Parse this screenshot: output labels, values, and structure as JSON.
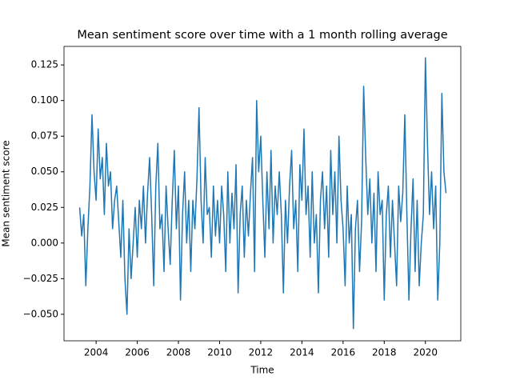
{
  "chart_data": {
    "type": "line",
    "title": "Mean sentiment score over time with a 1 month rolling average",
    "x_label": "Time",
    "y_label": "Mean sentiment score",
    "x": [
      2003.2,
      2003.3,
      2003.4,
      2003.5,
      2003.6,
      2003.7,
      2003.8,
      2003.9,
      2004.0,
      2004.1,
      2004.2,
      2004.3,
      2004.4,
      2004.5,
      2004.6,
      2004.7,
      2004.8,
      2004.9,
      2005.0,
      2005.1,
      2005.2,
      2005.3,
      2005.4,
      2005.5,
      2005.6,
      2005.7,
      2005.8,
      2005.9,
      2006.0,
      2006.1,
      2006.2,
      2006.3,
      2006.4,
      2006.5,
      2006.6,
      2006.7,
      2006.8,
      2006.9,
      2007.0,
      2007.1,
      2007.2,
      2007.3,
      2007.4,
      2007.5,
      2007.6,
      2007.7,
      2007.8,
      2007.9,
      2008.0,
      2008.1,
      2008.2,
      2008.3,
      2008.4,
      2008.5,
      2008.6,
      2008.7,
      2008.8,
      2008.9,
      2009.0,
      2009.1,
      2009.2,
      2009.3,
      2009.4,
      2009.5,
      2009.6,
      2009.7,
      2009.8,
      2009.9,
      2010.0,
      2010.1,
      2010.2,
      2010.3,
      2010.4,
      2010.5,
      2010.6,
      2010.7,
      2010.8,
      2010.9,
      2011.0,
      2011.1,
      2011.2,
      2011.3,
      2011.4,
      2011.5,
      2011.6,
      2011.7,
      2011.8,
      2011.9,
      2012.0,
      2012.1,
      2012.2,
      2012.3,
      2012.4,
      2012.5,
      2012.6,
      2012.7,
      2012.8,
      2012.9,
      2013.0,
      2013.1,
      2013.2,
      2013.3,
      2013.4,
      2013.5,
      2013.6,
      2013.7,
      2013.8,
      2013.9,
      2014.0,
      2014.1,
      2014.2,
      2014.3,
      2014.4,
      2014.5,
      2014.6,
      2014.7,
      2014.8,
      2014.9,
      2015.0,
      2015.1,
      2015.2,
      2015.3,
      2015.4,
      2015.5,
      2015.6,
      2015.7,
      2015.8,
      2015.9,
      2016.0,
      2016.1,
      2016.2,
      2016.3,
      2016.4,
      2016.5,
      2016.6,
      2016.7,
      2016.8,
      2016.9,
      2017.0,
      2017.1,
      2017.2,
      2017.3,
      2017.4,
      2017.5,
      2017.6,
      2017.7,
      2017.8,
      2017.9,
      2018.0,
      2018.1,
      2018.2,
      2018.3,
      2018.4,
      2018.5,
      2018.6,
      2018.7,
      2018.8,
      2018.9,
      2019.0,
      2019.1,
      2019.2,
      2019.3,
      2019.4,
      2019.5,
      2019.6,
      2019.7,
      2019.8,
      2019.9,
      2020.0,
      2020.1,
      2020.2,
      2020.3,
      2020.4,
      2020.5,
      2020.6,
      2020.7,
      2020.8,
      2020.9,
      2021.0
    ],
    "series": [
      {
        "name": "Mean sentiment score",
        "color": "#1f77b4",
        "values": [
          0.025,
          0.005,
          0.02,
          -0.03,
          0.01,
          0.04,
          0.09,
          0.05,
          0.03,
          0.08,
          0.045,
          0.06,
          0.02,
          0.07,
          0.04,
          0.05,
          0.01,
          0.03,
          0.04,
          0.015,
          -0.01,
          0.03,
          -0.025,
          -0.05,
          0.01,
          -0.025,
          0.0,
          0.025,
          -0.01,
          0.03,
          0.01,
          0.04,
          0.0,
          0.035,
          0.06,
          0.02,
          -0.03,
          0.04,
          0.07,
          0.01,
          0.02,
          -0.02,
          0.04,
          0.01,
          -0.015,
          0.03,
          0.065,
          0.01,
          0.04,
          -0.04,
          0.02,
          0.05,
          0.0,
          0.03,
          -0.02,
          0.03,
          0.01,
          0.045,
          0.095,
          0.03,
          0.0,
          0.06,
          0.02,
          0.025,
          -0.01,
          0.04,
          0.005,
          0.03,
          0.0,
          0.04,
          0.02,
          -0.02,
          0.05,
          0.0,
          0.035,
          0.01,
          0.055,
          -0.035,
          0.02,
          0.04,
          -0.01,
          0.03,
          0.005,
          0.035,
          0.06,
          -0.02,
          0.1,
          0.05,
          0.075,
          0.03,
          -0.01,
          0.05,
          0.01,
          0.065,
          0.0,
          0.04,
          0.02,
          0.05,
          0.02,
          -0.035,
          0.03,
          0.0,
          0.04,
          0.065,
          0.01,
          0.03,
          -0.02,
          0.055,
          0.03,
          0.08,
          0.02,
          0.04,
          -0.01,
          0.05,
          0.0,
          0.02,
          -0.035,
          0.03,
          0.05,
          0.01,
          0.04,
          -0.01,
          0.065,
          0.02,
          0.05,
          0.0,
          0.075,
          0.03,
          0.01,
          -0.03,
          0.04,
          0.0,
          0.02,
          -0.06,
          0.01,
          0.03,
          -0.02,
          0.015,
          0.11,
          0.06,
          0.02,
          0.045,
          0.0,
          0.035,
          -0.02,
          0.05,
          0.02,
          0.03,
          -0.04,
          0.02,
          0.04,
          -0.01,
          0.03,
          0.0,
          -0.03,
          0.04,
          0.015,
          0.035,
          0.09,
          0.02,
          -0.04,
          0.01,
          0.045,
          -0.02,
          0.03,
          -0.03,
          0.0,
          0.02,
          0.13,
          0.07,
          0.02,
          0.05,
          0.01,
          0.04,
          -0.04,
          0.0,
          0.105,
          0.05,
          0.035
        ]
      }
    ],
    "xlim": [
      2002.44,
      2021.72
    ],
    "xticks": [
      2004,
      2006,
      2008,
      2010,
      2012,
      2014,
      2016,
      2018,
      2020
    ],
    "ylim": [
      -0.0686,
      0.138
    ],
    "yticks": [
      {
        "value": -0.05,
        "label": "−0.050"
      },
      {
        "value": -0.025,
        "label": "−0.025"
      },
      {
        "value": 0,
        "label": "0.000"
      },
      {
        "value": 0.025,
        "label": "0.025"
      },
      {
        "value": 0.05,
        "label": "0.050"
      },
      {
        "value": 0.075,
        "label": "0.075"
      },
      {
        "value": 0.1,
        "label": "0.100"
      },
      {
        "value": 0.125,
        "label": "0.125"
      }
    ],
    "grid": false
  }
}
